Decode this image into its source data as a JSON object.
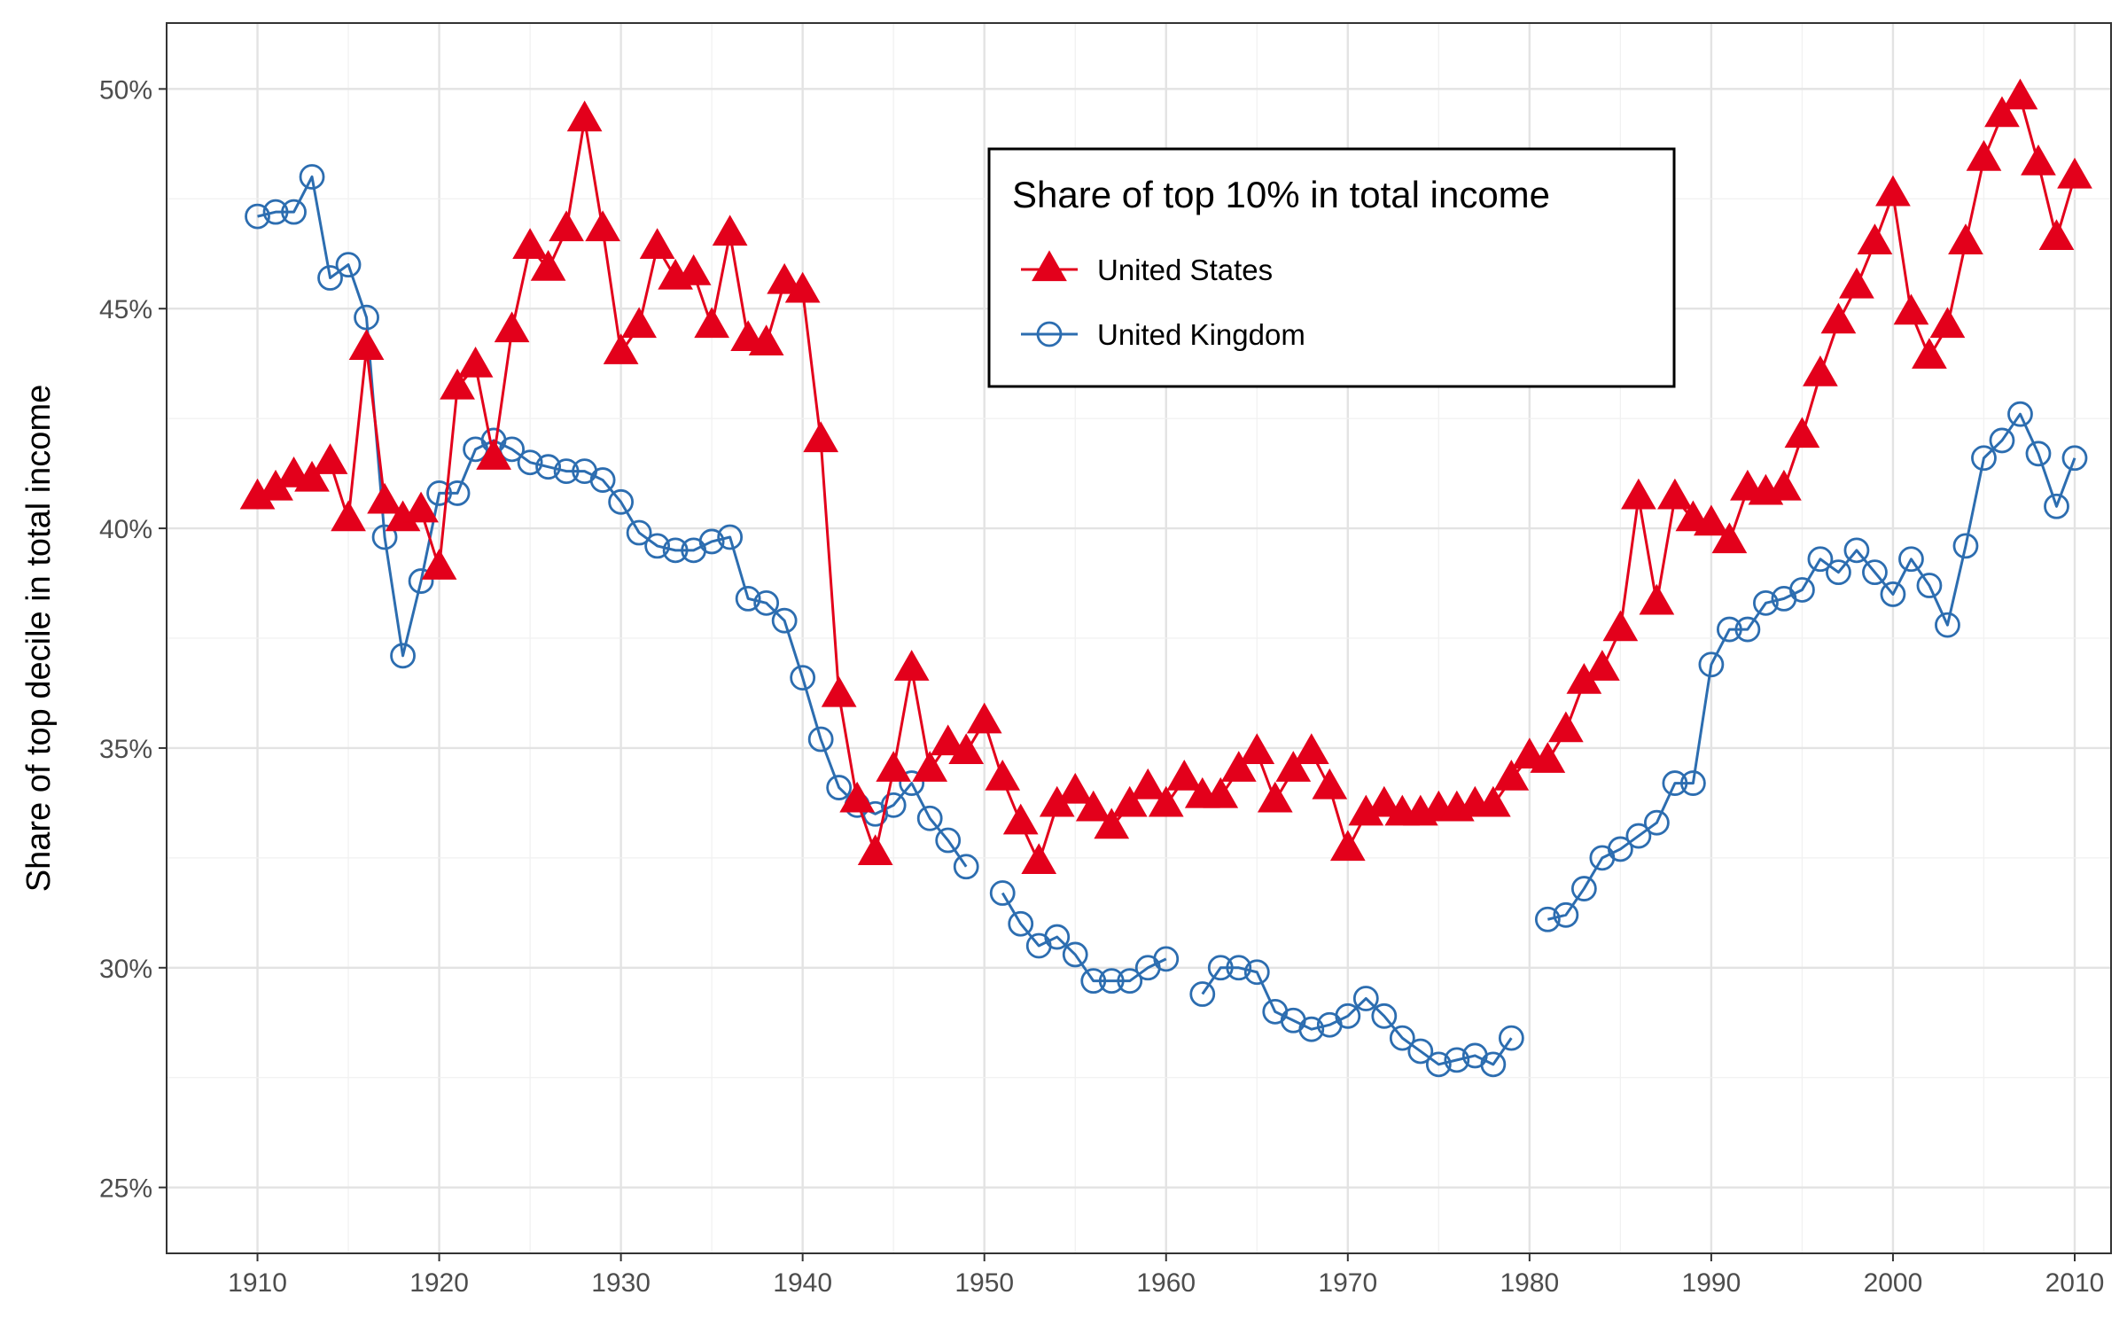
{
  "chart_data": {
    "type": "line",
    "title": "",
    "xlabel": "",
    "ylabel": "Share of top decile in total income",
    "xlim": [
      1905,
      2012
    ],
    "ylim": [
      0.235,
      0.515
    ],
    "x_ticks": [
      1910,
      1920,
      1930,
      1940,
      1950,
      1960,
      1970,
      1980,
      1990,
      2000,
      2010
    ],
    "y_ticks": [
      0.25,
      0.3,
      0.35,
      0.4,
      0.45,
      0.5
    ],
    "y_tick_labels": [
      "25%",
      "30%",
      "35%",
      "40%",
      "45%",
      "50%"
    ],
    "grid": true,
    "legend": {
      "title": "Share of top 10% in total income",
      "placement": "top-center"
    },
    "series": [
      {
        "name": "United States",
        "color": "#E3001B",
        "marker": "filled-triangle",
        "points": [
          [
            1910,
            0.407
          ],
          [
            1911,
            0.409
          ],
          [
            1912,
            0.412
          ],
          [
            1913,
            0.411
          ],
          [
            1914,
            0.415
          ],
          [
            1915,
            0.402
          ],
          [
            1916,
            0.441
          ],
          [
            1917,
            0.406
          ],
          [
            1918,
            0.402
          ],
          [
            1919,
            0.404
          ],
          [
            1920,
            0.391
          ],
          [
            1921,
            0.432
          ],
          [
            1922,
            0.437
          ],
          [
            1923,
            0.416
          ],
          [
            1924,
            0.445
          ],
          [
            1925,
            0.464
          ],
          [
            1926,
            0.459
          ],
          [
            1927,
            0.468
          ],
          [
            1928,
            0.493
          ],
          [
            1929,
            0.468
          ],
          [
            1930,
            0.44
          ],
          [
            1931,
            0.446
          ],
          [
            1932,
            0.464
          ],
          [
            1933,
            0.457
          ],
          [
            1934,
            0.458
          ],
          [
            1935,
            0.446
          ],
          [
            1936,
            0.467
          ],
          [
            1937,
            0.443
          ],
          [
            1938,
            0.442
          ],
          [
            1939,
            0.456
          ],
          [
            1940,
            0.454
          ],
          [
            1941,
            0.42
          ],
          [
            1942,
            0.362
          ],
          [
            1943,
            0.338
          ],
          [
            1944,
            0.326
          ],
          [
            1945,
            0.345
          ],
          [
            1946,
            0.368
          ],
          [
            1947,
            0.345
          ],
          [
            1948,
            0.351
          ],
          [
            1949,
            0.349
          ],
          [
            1950,
            0.356
          ],
          [
            1951,
            0.343
          ],
          [
            1952,
            0.333
          ],
          [
            1953,
            0.324
          ],
          [
            1954,
            0.337
          ],
          [
            1955,
            0.34
          ],
          [
            1956,
            0.336
          ],
          [
            1957,
            0.332
          ],
          [
            1958,
            0.337
          ],
          [
            1959,
            0.341
          ],
          [
            1960,
            0.337
          ],
          [
            1961,
            0.343
          ],
          [
            1962,
            0.339
          ],
          [
            1963,
            0.339
          ],
          [
            1964,
            0.345
          ],
          [
            1965,
            0.349
          ],
          [
            1966,
            0.338
          ],
          [
            1967,
            0.345
          ],
          [
            1968,
            0.349
          ],
          [
            1969,
            0.341
          ],
          [
            1970,
            0.327
          ],
          [
            1971,
            0.335
          ],
          [
            1972,
            0.337
          ],
          [
            1973,
            0.335
          ],
          [
            1974,
            0.335
          ],
          [
            1975,
            0.336
          ],
          [
            1976,
            0.336
          ],
          [
            1977,
            0.337
          ],
          [
            1978,
            0.337
          ],
          [
            1979,
            0.343
          ],
          [
            1980,
            0.348
          ],
          [
            1981,
            0.347
          ],
          [
            1982,
            0.354
          ],
          [
            1983,
            0.365
          ],
          [
            1984,
            0.368
          ],
          [
            1985,
            0.377
          ],
          [
            1986,
            0.407
          ],
          [
            1987,
            0.383
          ],
          [
            1988,
            0.407
          ],
          [
            1989,
            0.402
          ],
          [
            1990,
            0.401
          ],
          [
            1991,
            0.397
          ],
          [
            1992,
            0.409
          ],
          [
            1993,
            0.408
          ],
          [
            1994,
            0.409
          ],
          [
            1995,
            0.421
          ],
          [
            1996,
            0.435
          ],
          [
            1997,
            0.447
          ],
          [
            1998,
            0.455
          ],
          [
            1999,
            0.465
          ],
          [
            2000,
            0.476
          ],
          [
            2001,
            0.449
          ],
          [
            2002,
            0.439
          ],
          [
            2003,
            0.446
          ],
          [
            2004,
            0.465
          ],
          [
            2005,
            0.484
          ],
          [
            2006,
            0.494
          ],
          [
            2007,
            0.498
          ],
          [
            2008,
            0.483
          ],
          [
            2009,
            0.466
          ],
          [
            2010,
            0.48
          ]
        ]
      },
      {
        "name": "United Kingdom",
        "color": "#2C6DB0",
        "marker": "hollow-circle",
        "points": [
          [
            1910,
            0.471
          ],
          [
            1911,
            0.472
          ],
          [
            1912,
            0.472
          ],
          [
            1913,
            0.48
          ],
          [
            1914,
            0.457
          ],
          [
            1915,
            0.46
          ],
          [
            1916,
            0.448
          ],
          [
            1917,
            0.398
          ],
          [
            1918,
            0.371
          ],
          [
            1919,
            0.388
          ],
          [
            1920,
            0.408
          ],
          [
            1921,
            0.408
          ],
          [
            1922,
            0.418
          ],
          [
            1923,
            0.42
          ],
          [
            1924,
            0.418
          ],
          [
            1925,
            0.415
          ],
          [
            1926,
            0.414
          ],
          [
            1927,
            0.413
          ],
          [
            1928,
            0.413
          ],
          [
            1929,
            0.411
          ],
          [
            1930,
            0.406
          ],
          [
            1931,
            0.399
          ],
          [
            1932,
            0.396
          ],
          [
            1933,
            0.395
          ],
          [
            1934,
            0.395
          ],
          [
            1935,
            0.397
          ],
          [
            1936,
            0.398
          ],
          [
            1937,
            0.384
          ],
          [
            1938,
            0.383
          ],
          [
            1939,
            0.379
          ],
          [
            1940,
            0.366
          ],
          [
            1941,
            0.352
          ],
          [
            1942,
            0.341
          ],
          [
            1943,
            0.337
          ],
          [
            1944,
            0.335
          ],
          [
            1945,
            0.337
          ],
          [
            1946,
            0.342
          ],
          [
            1947,
            0.334
          ],
          [
            1948,
            0.329
          ],
          [
            1949,
            0.323
          ],
          [
            1950,
            null
          ],
          [
            1951,
            0.317
          ],
          [
            1952,
            0.31
          ],
          [
            1953,
            0.305
          ],
          [
            1954,
            0.307
          ],
          [
            1955,
            0.303
          ],
          [
            1956,
            0.297
          ],
          [
            1957,
            0.297
          ],
          [
            1958,
            0.297
          ],
          [
            1959,
            0.3
          ],
          [
            1960,
            0.302
          ],
          [
            1961,
            null
          ],
          [
            1962,
            0.294
          ],
          [
            1963,
            0.3
          ],
          [
            1964,
            0.3
          ],
          [
            1965,
            0.299
          ],
          [
            1966,
            0.29
          ],
          [
            1967,
            0.288
          ],
          [
            1968,
            0.286
          ],
          [
            1969,
            0.287
          ],
          [
            1970,
            0.289
          ],
          [
            1971,
            0.293
          ],
          [
            1972,
            0.289
          ],
          [
            1973,
            0.284
          ],
          [
            1974,
            0.281
          ],
          [
            1975,
            0.278
          ],
          [
            1976,
            0.279
          ],
          [
            1977,
            0.28
          ],
          [
            1978,
            0.278
          ],
          [
            1979,
            0.284
          ],
          [
            1980,
            null
          ],
          [
            1981,
            0.311
          ],
          [
            1982,
            0.312
          ],
          [
            1983,
            0.318
          ],
          [
            1984,
            0.325
          ],
          [
            1985,
            0.327
          ],
          [
            1986,
            0.33
          ],
          [
            1987,
            0.333
          ],
          [
            1988,
            0.342
          ],
          [
            1989,
            0.342
          ],
          [
            1990,
            0.369
          ],
          [
            1991,
            0.377
          ],
          [
            1992,
            0.377
          ],
          [
            1993,
            0.383
          ],
          [
            1994,
            0.384
          ],
          [
            1995,
            0.386
          ],
          [
            1996,
            0.393
          ],
          [
            1997,
            0.39
          ],
          [
            1998,
            0.395
          ],
          [
            1999,
            0.39
          ],
          [
            2000,
            0.385
          ],
          [
            2001,
            0.393
          ],
          [
            2002,
            0.387
          ],
          [
            2003,
            0.378
          ],
          [
            2004,
            0.396
          ],
          [
            2005,
            0.416
          ],
          [
            2006,
            0.42
          ],
          [
            2007,
            0.426
          ],
          [
            2008,
            0.417
          ],
          [
            2009,
            0.405
          ],
          [
            2010,
            0.416
          ]
        ]
      }
    ]
  }
}
